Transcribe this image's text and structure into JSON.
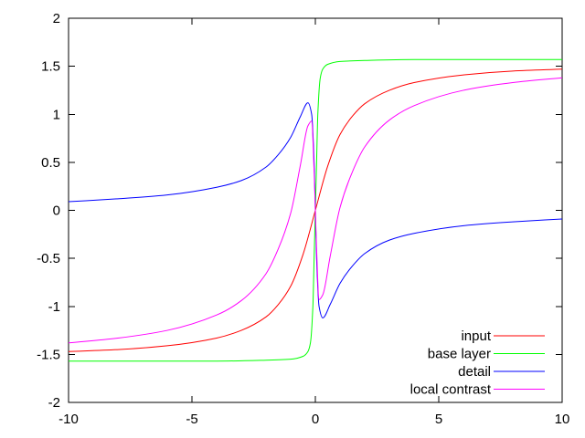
{
  "chart_data": {
    "type": "line",
    "title": "",
    "xlabel": "",
    "ylabel": "",
    "xlim": [
      -10,
      10
    ],
    "ylim": [
      -2,
      2
    ],
    "x_ticks": [
      -10,
      -5,
      0,
      5,
      10
    ],
    "x_tick_labels": [
      "-10",
      "-5",
      "0",
      "5",
      "10"
    ],
    "y_ticks": [
      -2,
      -1.5,
      -1,
      -0.5,
      0,
      0.5,
      1,
      1.5,
      2
    ],
    "y_tick_labels": [
      "-2",
      "-1.5",
      "-1",
      "-0.5",
      "0",
      "0.5",
      "1",
      "1.5",
      "2"
    ],
    "grid": false,
    "legend_position": "bottom-right",
    "series": [
      {
        "name": "input",
        "color": "#ff0000",
        "x": [
          -10,
          -8,
          -6,
          -4,
          -3,
          -2,
          -1.5,
          -1,
          -0.5,
          0,
          0.5,
          1,
          1.5,
          2,
          3,
          4,
          6,
          8,
          10
        ],
        "y": [
          -1.47,
          -1.45,
          -1.41,
          -1.33,
          -1.25,
          -1.11,
          -0.98,
          -0.79,
          -0.46,
          0.0,
          0.46,
          0.79,
          0.98,
          1.11,
          1.25,
          1.33,
          1.41,
          1.45,
          1.47
        ]
      },
      {
        "name": "base layer",
        "color": "#00ff00",
        "x": [
          -10,
          -4,
          -2,
          -1,
          -0.5,
          -0.3,
          -0.2,
          -0.1,
          -0.05,
          0,
          0.05,
          0.1,
          0.2,
          0.3,
          0.5,
          1,
          2,
          4,
          10
        ],
        "y": [
          -1.57,
          -1.57,
          -1.56,
          -1.55,
          -1.52,
          -1.47,
          -1.38,
          -1.0,
          -0.5,
          0.0,
          0.5,
          1.0,
          1.38,
          1.47,
          1.52,
          1.55,
          1.56,
          1.57,
          1.57
        ]
      },
      {
        "name": "detail",
        "color": "#0000ff",
        "x": [
          -10,
          -8,
          -6,
          -4,
          -3,
          -2,
          -1.5,
          -1,
          -0.6,
          -0.3,
          -0.15,
          -0.05,
          0,
          0.05,
          0.15,
          0.3,
          0.6,
          1,
          1.5,
          2,
          3,
          4,
          6,
          8,
          10
        ],
        "y": [
          0.09,
          0.12,
          0.16,
          0.24,
          0.31,
          0.45,
          0.58,
          0.76,
          0.98,
          1.12,
          1.0,
          0.5,
          0.0,
          -0.5,
          -1.0,
          -1.12,
          -0.98,
          -0.76,
          -0.58,
          -0.45,
          -0.31,
          -0.24,
          -0.16,
          -0.12,
          -0.09
        ]
      },
      {
        "name": "local contrast",
        "color": "#ff00ff",
        "x": [
          -10,
          -8,
          -6,
          -4,
          -3,
          -2,
          -1.5,
          -1,
          -0.6,
          -0.3,
          -0.15,
          -0.05,
          0,
          0.05,
          0.15,
          0.3,
          0.6,
          1,
          1.5,
          2,
          3,
          4,
          6,
          8,
          10
        ],
        "y": [
          -1.38,
          -1.33,
          -1.25,
          -1.09,
          -0.94,
          -0.66,
          -0.4,
          -0.03,
          0.48,
          0.88,
          0.93,
          0.4,
          0.0,
          -0.4,
          -0.93,
          -0.88,
          -0.48,
          0.03,
          0.4,
          0.66,
          0.94,
          1.09,
          1.25,
          1.33,
          1.38
        ]
      }
    ]
  }
}
